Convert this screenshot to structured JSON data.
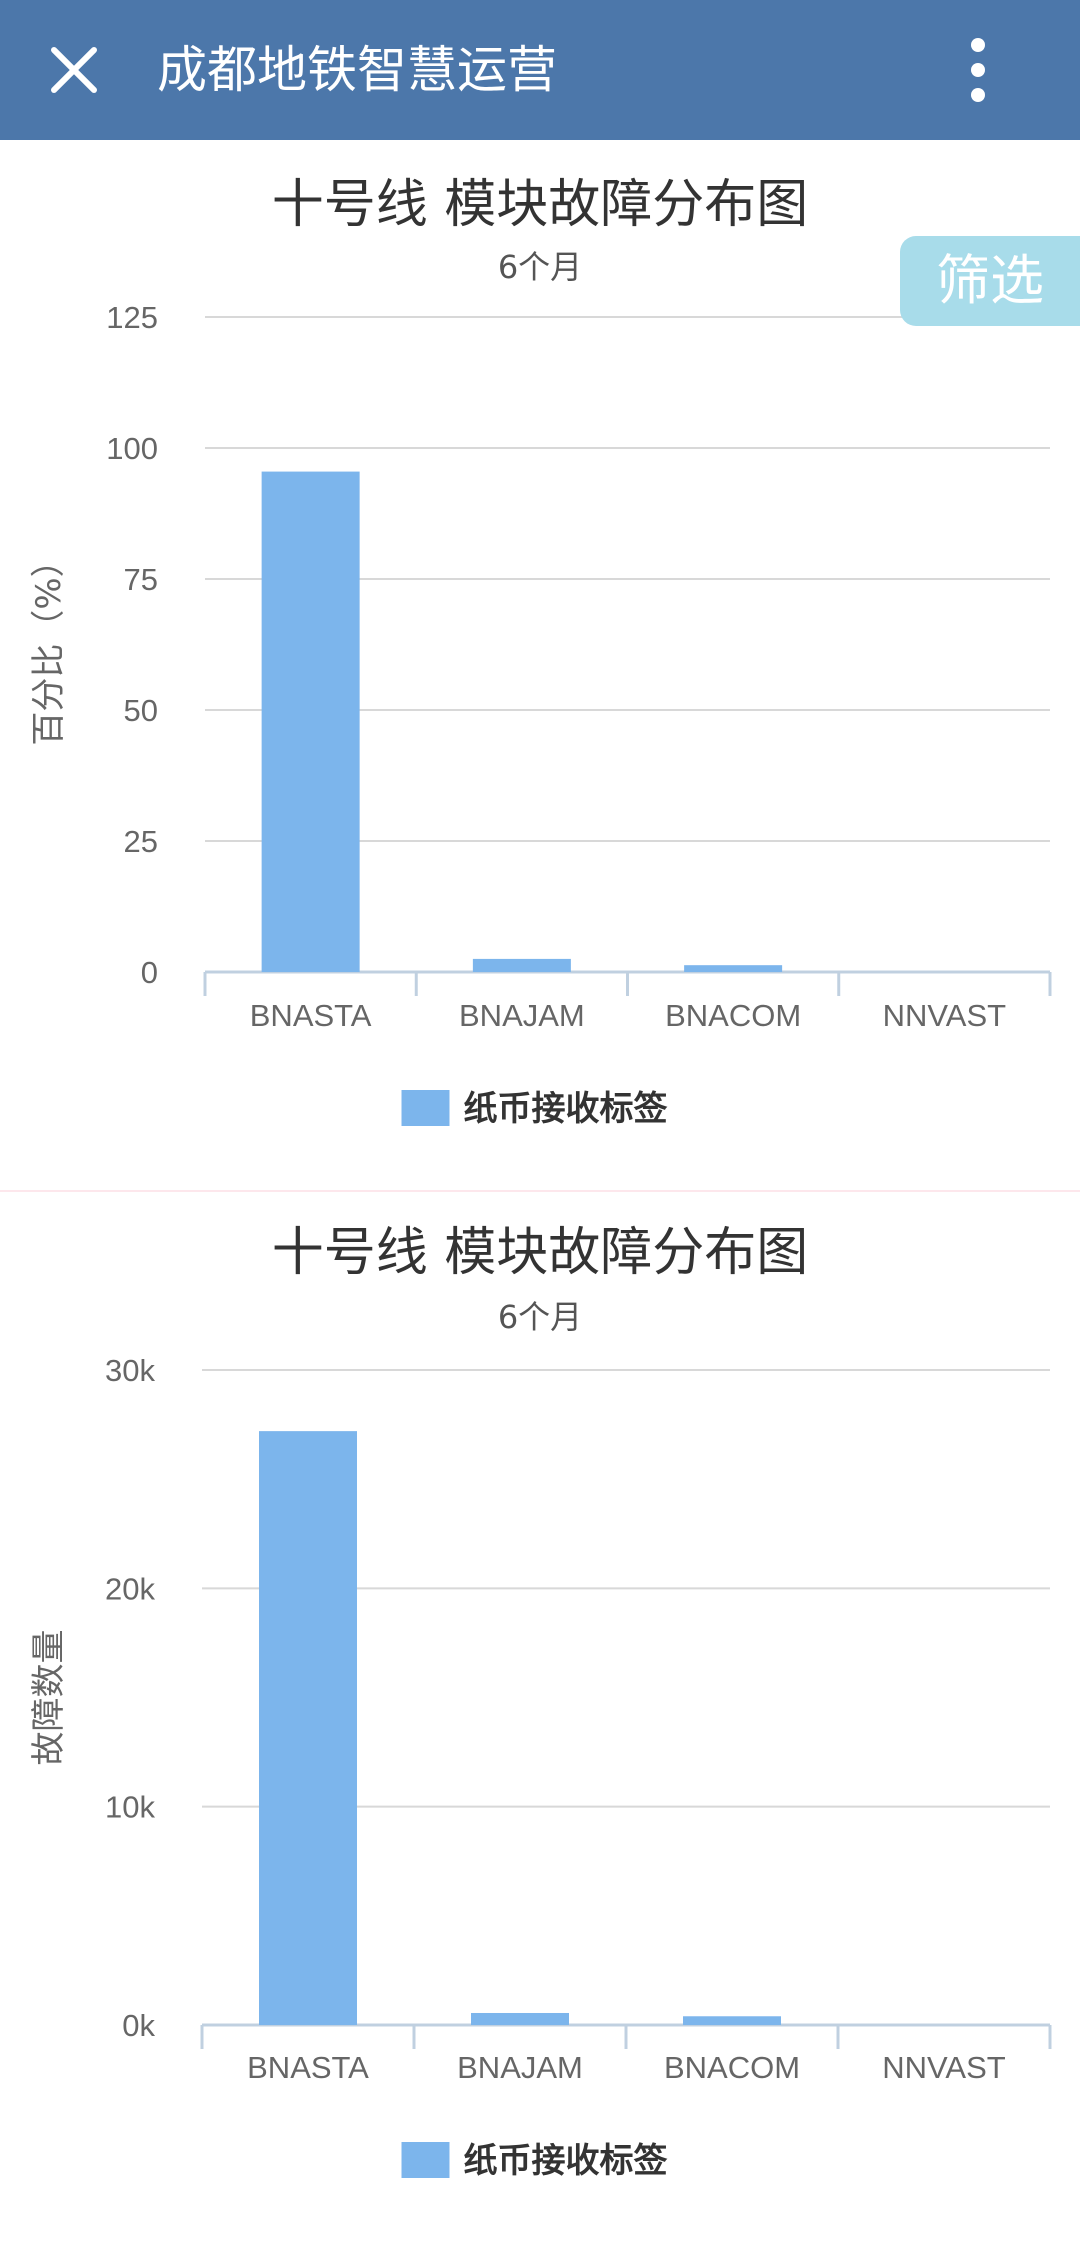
{
  "appbar": {
    "title": "成都地铁智慧运营",
    "close_icon": "close-icon",
    "menu_icon": "more-vertical-icon",
    "background": "#4c77aa"
  },
  "filter": {
    "label": "筛选",
    "color": "#a8dcea"
  },
  "chart_data": [
    {
      "type": "bar",
      "title": "十号线 模块故障分布图",
      "subtitle": "6个月",
      "categories": [
        "BNASTA",
        "BNAJAM",
        "BNACOM",
        "NNVAST"
      ],
      "series": [
        {
          "name": "纸币接收标签",
          "values": [
            95.5,
            2.5,
            1.3,
            0
          ],
          "color": "#7cb5ec"
        }
      ],
      "ylabel": "百分比（%）",
      "xlabel": "",
      "ylim": [
        0,
        125
      ],
      "yticks": [
        0,
        25,
        50,
        75,
        100,
        125
      ],
      "ytick_labels": [
        "0",
        "25",
        "50",
        "75",
        "100",
        "125"
      ],
      "grid": true,
      "legend": "bottom-center"
    },
    {
      "type": "bar",
      "title": "十号线 模块故障分布图",
      "subtitle": "6个月",
      "categories": [
        "BNASTA",
        "BNAJAM",
        "BNACOM",
        "NNVAST"
      ],
      "series": [
        {
          "name": "纸币接收标签",
          "values": [
            27200,
            550,
            400,
            0
          ],
          "color": "#7cb5ec"
        }
      ],
      "ylabel": "故障数量",
      "xlabel": "",
      "ylim": [
        0,
        30000
      ],
      "yticks": [
        0,
        10000,
        20000,
        30000
      ],
      "ytick_labels": [
        "0k",
        "10k",
        "20k",
        "30k"
      ],
      "grid": true,
      "legend": "bottom-center"
    }
  ]
}
